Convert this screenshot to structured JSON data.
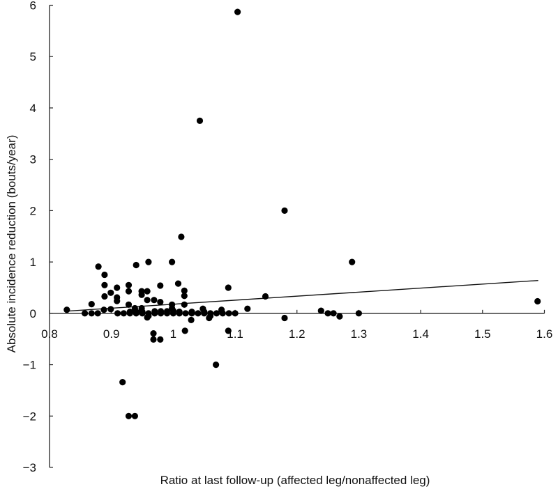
{
  "chart_data": {
    "type": "scatter",
    "title": "",
    "xlabel": "Ratio at last follow-up (affected leg/nonaffected leg)",
    "ylabel": "Absolute incidence reduction (bouts/year)",
    "xlim": [
      0.8,
      1.6
    ],
    "ylim": [
      -3,
      6
    ],
    "x_ticks": [
      "0.8",
      "0.9",
      "1",
      "1.1",
      "1.2",
      "1.3",
      "1.4",
      "1.5",
      "1.6"
    ],
    "x_tick_values": [
      0.8,
      0.9,
      1.0,
      1.1,
      1.2,
      1.3,
      1.4,
      1.5,
      1.6
    ],
    "y_ticks": [
      "6",
      "5",
      "4",
      "3",
      "2",
      "1",
      "0",
      "−1",
      "−2",
      "−3"
    ],
    "y_tick_values": [
      6,
      5,
      4,
      3,
      2,
      1,
      0,
      -1,
      -2,
      -3
    ],
    "grid": false,
    "legend": null,
    "marker_color": "#000000",
    "trendline": {
      "type": "linear",
      "x": [
        0.83,
        1.59
      ],
      "y": [
        0.045,
        0.64
      ]
    },
    "points": [
      [
        1.104,
        5.87
      ],
      [
        1.043,
        3.75
      ],
      [
        1.18,
        2.0
      ],
      [
        1.013,
        1.49
      ],
      [
        1.289,
        1.0
      ],
      [
        0.998,
        1.0
      ],
      [
        0.96,
        1.0
      ],
      [
        0.94,
        0.94
      ],
      [
        0.879,
        0.91
      ],
      [
        0.889,
        0.75
      ],
      [
        0.889,
        0.55
      ],
      [
        0.909,
        0.5
      ],
      [
        0.899,
        0.4
      ],
      [
        0.889,
        0.33
      ],
      [
        0.909,
        0.31
      ],
      [
        0.909,
        0.24
      ],
      [
        0.928,
        0.55
      ],
      [
        0.928,
        0.43
      ],
      [
        0.949,
        0.43
      ],
      [
        0.949,
        0.36
      ],
      [
        0.958,
        0.43
      ],
      [
        0.979,
        0.54
      ],
      [
        0.958,
        0.26
      ],
      [
        0.969,
        0.26
      ],
      [
        0.979,
        0.22
      ],
      [
        0.928,
        0.17
      ],
      [
        0.938,
        0.1
      ],
      [
        0.949,
        0.1
      ],
      [
        0.938,
        0.05
      ],
      [
        0.949,
        0.05
      ],
      [
        0.899,
        0.08
      ],
      [
        0.958,
        -0.08
      ],
      [
        1.008,
        0.58
      ],
      [
        1.018,
        0.44
      ],
      [
        1.018,
        0.34
      ],
      [
        1.018,
        0.17
      ],
      [
        0.998,
        0.17
      ],
      [
        0.998,
        0.1
      ],
      [
        1.089,
        0.5
      ],
      [
        1.029,
        -0.13
      ],
      [
        1.058,
        -0.09
      ],
      [
        1.048,
        0.09
      ],
      [
        1.078,
        0.07
      ],
      [
        1.149,
        0.33
      ],
      [
        1.12,
        0.09
      ],
      [
        1.18,
        -0.09
      ],
      [
        1.239,
        0.05
      ],
      [
        1.25,
        0.0
      ],
      [
        1.259,
        0.0
      ],
      [
        1.269,
        -0.06
      ],
      [
        1.3,
        0.0
      ],
      [
        1.589,
        0.235
      ],
      [
        0.828,
        0.07
      ],
      [
        0.857,
        0.0
      ],
      [
        0.868,
        0.0
      ],
      [
        0.878,
        0.0
      ],
      [
        0.868,
        0.18
      ],
      [
        0.888,
        0.07
      ],
      [
        0.91,
        0.0
      ],
      [
        0.92,
        0.0
      ],
      [
        0.93,
        0.0
      ],
      [
        0.94,
        0.0
      ],
      [
        0.95,
        0.0
      ],
      [
        0.96,
        0.0
      ],
      [
        0.97,
        0.0
      ],
      [
        0.98,
        0.0
      ],
      [
        0.99,
        0.0
      ],
      [
        1.0,
        0.0
      ],
      [
        1.01,
        0.0
      ],
      [
        1.02,
        0.0
      ],
      [
        1.03,
        0.0
      ],
      [
        1.04,
        0.0
      ],
      [
        1.05,
        0.0
      ],
      [
        1.06,
        0.0
      ],
      [
        1.07,
        0.0
      ],
      [
        1.08,
        0.0
      ],
      [
        1.09,
        0.0
      ],
      [
        1.1,
        0.0
      ],
      [
        0.93,
        0.03
      ],
      [
        0.94,
        0.03
      ],
      [
        0.95,
        0.03
      ],
      [
        0.96,
        -0.05
      ],
      [
        0.97,
        0.04
      ],
      [
        0.98,
        0.04
      ],
      [
        0.99,
        0.04
      ],
      [
        1.0,
        0.05
      ],
      [
        1.01,
        0.03
      ],
      [
        1.03,
        0.03
      ],
      [
        1.05,
        0.03
      ],
      [
        1.06,
        -0.05
      ],
      [
        0.968,
        -0.39
      ],
      [
        0.968,
        -0.51
      ],
      [
        0.979,
        -0.51
      ],
      [
        1.019,
        -0.34
      ],
      [
        1.089,
        -0.34
      ],
      [
        1.069,
        -1.0
      ],
      [
        0.918,
        -1.34
      ],
      [
        0.928,
        -2.0
      ],
      [
        0.938,
        -2.0
      ]
    ]
  },
  "axes": {
    "x_title": "Ratio at last follow-up (affected leg/nonaffected leg)",
    "y_title": "Absolute incidence reduction (bouts/year)"
  }
}
